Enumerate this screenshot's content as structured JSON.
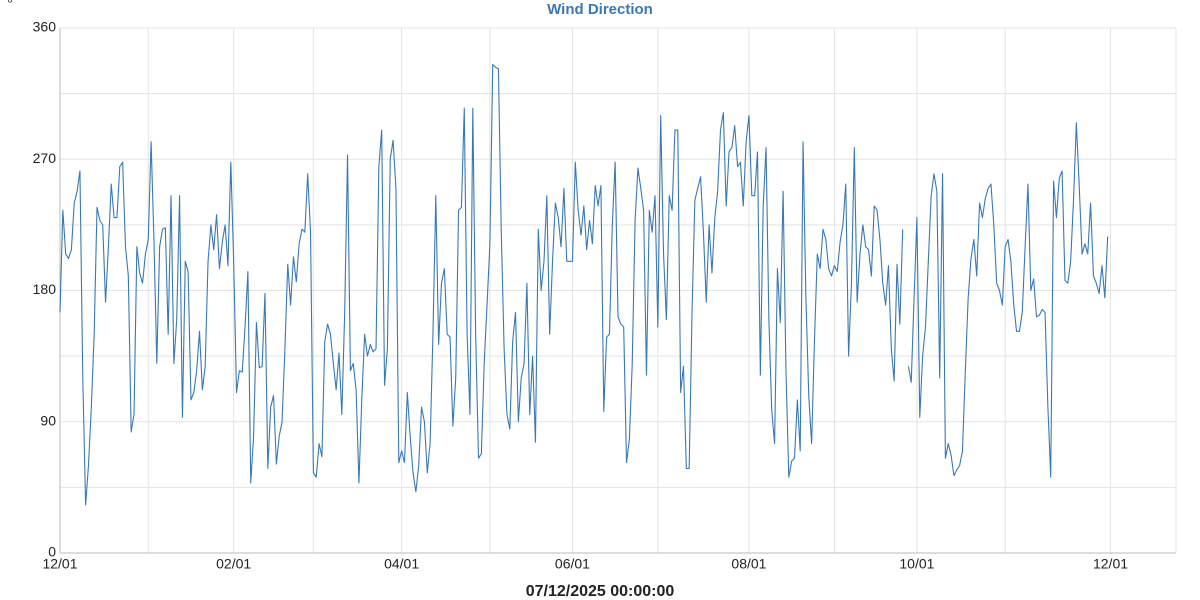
{
  "chart_data": {
    "type": "line",
    "title": "Wind Direction",
    "y_label": "°",
    "x_label": "07/12/2025 00:00:00",
    "color": "#3a78b4",
    "grid": true,
    "xlim": [
      0,
      392
    ],
    "ylim": [
      0,
      360
    ],
    "xticks": [
      {
        "value": 0,
        "label": "12/01"
      },
      {
        "value": 61,
        "label": "02/01"
      },
      {
        "value": 120,
        "label": "04/01"
      },
      {
        "value": 180,
        "label": "06/01"
      },
      {
        "value": 242,
        "label": "08/01"
      },
      {
        "value": 301,
        "label": "10/01"
      },
      {
        "value": 369,
        "label": "12/01"
      }
    ],
    "x_minor_grid": [
      31,
      89,
      151,
      210,
      272,
      332,
      392
    ],
    "yticks": [
      0,
      90,
      180,
      270,
      360
    ],
    "y_minor_grid": [
      45,
      135,
      225,
      315
    ],
    "x": [
      0,
      1,
      2,
      3,
      4,
      5,
      6,
      7,
      8,
      9,
      10,
      11,
      12,
      13,
      14,
      15,
      16,
      17,
      18,
      19,
      20,
      21,
      22,
      23,
      24,
      25,
      26,
      27,
      28,
      29,
      30,
      31,
      32,
      33,
      34,
      35,
      36,
      37,
      38,
      39,
      40,
      41,
      42,
      43,
      44,
      45,
      46,
      47,
      48,
      49,
      50,
      51,
      52,
      53,
      54,
      55,
      56,
      57,
      58,
      59,
      60,
      61,
      62,
      63,
      64,
      65,
      66,
      67,
      68,
      69,
      70,
      71,
      72,
      73,
      74,
      75,
      76,
      77,
      78,
      79,
      80,
      81,
      82,
      83,
      84,
      85,
      86,
      87,
      88,
      89,
      90,
      91,
      92,
      93,
      94,
      95,
      96,
      97,
      98,
      99,
      100,
      101,
      102,
      103,
      104,
      105,
      106,
      107,
      108,
      109,
      110,
      111,
      112,
      113,
      114,
      115,
      116,
      117,
      118,
      119,
      120,
      121,
      122,
      123,
      124,
      125,
      126,
      127,
      128,
      129,
      130,
      131,
      132,
      133,
      134,
      135,
      136,
      137,
      138,
      139,
      140,
      141,
      142,
      143,
      144,
      145,
      146,
      147,
      148,
      149,
      150,
      151,
      152,
      153,
      154,
      155,
      156,
      157,
      158,
      159,
      160,
      161,
      162,
      163,
      164,
      165,
      166,
      167,
      168,
      169,
      170,
      171,
      172,
      173,
      174,
      175,
      176,
      177,
      178,
      179,
      180,
      181,
      182,
      183,
      184,
      185,
      186,
      187,
      188,
      189,
      190,
      191,
      192,
      193,
      194,
      195,
      196,
      197,
      198,
      199,
      200,
      201,
      202,
      203,
      204,
      205,
      206,
      207,
      208,
      209,
      210,
      211,
      212,
      213,
      214,
      215,
      216,
      217,
      218,
      219,
      220,
      221,
      222,
      223,
      224,
      225,
      226,
      227,
      228,
      229,
      230,
      231,
      232,
      233,
      234,
      235,
      236,
      237,
      238,
      239,
      240,
      241,
      242,
      243,
      244,
      245,
      246,
      247,
      248,
      249,
      250,
      251,
      252,
      253,
      254,
      255,
      256,
      257,
      258,
      259,
      260,
      261,
      262,
      263,
      264,
      265,
      266,
      267,
      268,
      269,
      270,
      271,
      272,
      273,
      274,
      275,
      276,
      277,
      278,
      279,
      280,
      281,
      282,
      283,
      284,
      285,
      286,
      287,
      288,
      289,
      290,
      291,
      292,
      293,
      294,
      295,
      296,
      297,
      298,
      299,
      300,
      301,
      302,
      303,
      304,
      305,
      306,
      307,
      308,
      309,
      310,
      311,
      312,
      313,
      314,
      315,
      316,
      317,
      318,
      319,
      320,
      321,
      322,
      323,
      324,
      325,
      326,
      327,
      328,
      329,
      330,
      331,
      332,
      333,
      334,
      335,
      336,
      337,
      338,
      339,
      340,
      341,
      342,
      343,
      344,
      345,
      346,
      347,
      348,
      349,
      350,
      351,
      352,
      353,
      354,
      355,
      356,
      357,
      358,
      359,
      360,
      361,
      362,
      363,
      364,
      365,
      366,
      367,
      368
    ],
    "values": [
      165,
      235,
      205,
      202,
      208,
      240,
      248,
      262,
      120,
      33,
      60,
      100,
      150,
      237,
      228,
      225,
      172,
      210,
      253,
      230,
      230,
      265,
      268,
      210,
      190,
      83,
      95,
      210,
      192,
      185,
      205,
      215,
      282,
      215,
      130,
      210,
      222,
      223,
      150,
      245,
      130,
      160,
      245,
      93,
      200,
      193,
      105,
      110,
      125,
      152,
      112,
      128,
      200,
      225,
      208,
      232,
      195,
      213,
      225,
      197,
      268,
      200,
      110,
      125,
      124,
      155,
      193,
      48,
      80,
      158,
      127,
      128,
      178,
      58,
      100,
      108,
      61,
      80,
      90,
      140,
      198,
      170,
      203,
      186,
      212,
      222,
      220,
      260,
      220,
      55,
      52,
      75,
      66,
      145,
      157,
      150,
      130,
      112,
      137,
      95,
      165,
      273,
      125,
      130,
      112,
      48,
      105,
      150,
      135,
      143,
      138,
      140,
      265,
      290,
      115,
      140,
      270,
      283,
      250,
      62,
      70,
      62,
      110,
      80,
      55,
      42,
      60,
      100,
      90,
      55,
      75,
      150,
      245,
      143,
      185,
      195,
      150,
      148,
      87,
      120,
      235,
      237,
      305,
      150,
      95,
      305,
      150,
      65,
      68,
      130,
      170,
      212,
      335,
      333,
      332,
      220,
      140,
      95,
      85,
      145,
      165,
      90,
      120,
      130,
      185,
      95,
      135,
      76,
      222,
      180,
      200,
      245,
      150,
      200,
      240,
      230,
      210,
      250,
      200,
      200,
      200,
      268,
      235,
      218,
      238,
      208,
      228,
      212,
      252,
      238,
      252,
      97,
      148,
      150,
      225,
      268,
      162,
      157,
      155,
      62,
      78,
      130,
      228,
      264,
      250,
      235,
      122,
      235,
      220,
      245,
      155,
      300,
      205,
      160,
      245,
      235,
      290,
      290,
      110,
      128,
      58,
      58,
      165,
      242,
      250,
      258,
      220,
      172,
      225,
      192,
      230,
      248,
      290,
      302,
      238,
      275,
      278,
      293,
      265,
      268,
      238,
      282,
      300,
      245,
      245,
      275,
      122,
      238,
      278,
      160,
      98,
      75,
      195,
      158,
      248,
      125,
      52,
      63,
      65,
      105,
      70,
      282,
      175,
      108,
      75,
      145,
      205,
      195,
      222,
      215,
      195,
      190,
      197,
      193,
      213,
      225,
      253,
      135,
      185,
      278,
      172,
      205,
      225,
      210,
      208,
      190,
      238,
      235,
      215,
      185,
      170,
      197,
      140,
      118,
      198,
      157,
      222,
      null,
      128,
      117,
      175,
      230,
      93,
      135,
      155,
      200,
      245,
      260,
      248,
      120,
      260,
      65,
      75,
      67,
      53,
      57,
      60,
      70,
      125,
      175,
      202,
      215,
      190,
      240,
      230,
      243,
      250,
      253,
      225,
      185,
      180,
      170,
      210,
      215,
      200,
      170,
      152,
      152,
      165,
      210,
      253,
      180,
      188,
      162,
      163,
      167,
      165,
      100,
      52,
      255,
      230,
      257,
      262,
      187,
      185,
      200,
      242,
      295,
      252,
      205,
      212,
      205,
      240,
      190,
      185,
      178,
      197,
      175,
      217
    ]
  }
}
